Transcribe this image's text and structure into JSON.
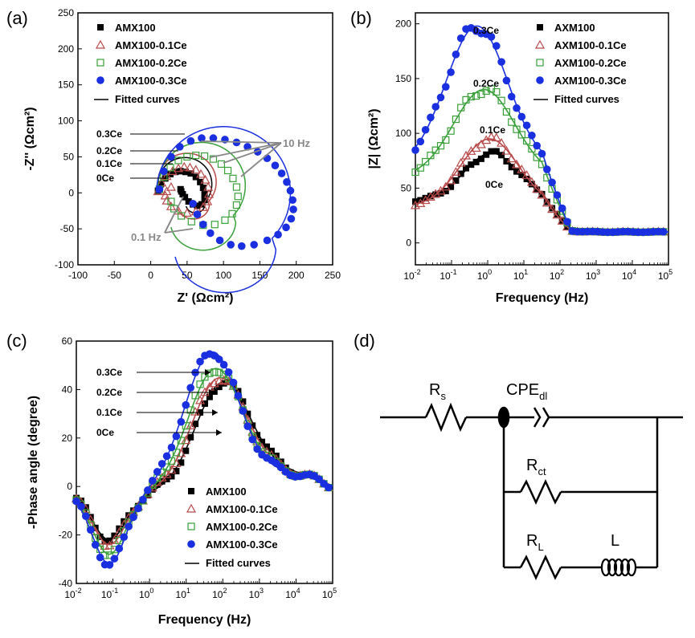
{
  "colors": {
    "AMX100": "#000000",
    "AMX100-0.1Ce": "#b84a4a",
    "AMX100-0.2Ce": "#3aa03a",
    "AMX100-0.3Ce": "#1a2fe0",
    "annotation_gray": "#888888"
  },
  "panels": {
    "a": "(a)",
    "b": "(b)",
    "c": "(c)",
    "d": "(d)"
  },
  "chart_data": [
    {
      "type": "scatter",
      "panel": "(a)",
      "xlabel": "Z' (Ωcm²)",
      "ylabel": "-Z'' (Ωcm²)",
      "xlim": [
        -100,
        250
      ],
      "ylim": [
        -100,
        250
      ],
      "xticks": [
        -100,
        -50,
        0,
        50,
        100,
        150,
        200,
        250
      ],
      "yticks": [
        -100,
        -50,
        0,
        50,
        100,
        150,
        200,
        250
      ],
      "legend": [
        "AMX100",
        "AMX100-0.1Ce",
        "AMX100-0.2Ce",
        "AMX100-0.3Ce",
        "Fitted curves"
      ],
      "legend_position": "top-left",
      "annotations": {
        "left": [
          "0.3Ce",
          "0.2Ce",
          "0.1Ce",
          "0Ce"
        ],
        "hz10": "10 Hz",
        "hz01": "0.1 Hz"
      },
      "series": [
        {
          "name": "AMX100",
          "marker": "filled-square",
          "center": [
            47,
            12
          ],
          "radius": 37,
          "r_loop": 13,
          "x": [
            10,
            14,
            20,
            27,
            34,
            41,
            48,
            55,
            62,
            68,
            72,
            74,
            74,
            70,
            64,
            58,
            52,
            47,
            44,
            42,
            41
          ],
          "y": [
            3,
            12,
            20,
            26,
            29,
            30,
            29,
            27,
            22,
            15,
            7,
            -2,
            -10,
            -16,
            -18,
            -16,
            -12,
            -6,
            -2,
            2,
            5
          ]
        },
        {
          "name": "AMX100-0.1Ce",
          "marker": "open-triangle",
          "center": [
            50,
            15
          ],
          "radius": 40,
          "r_loop": 22,
          "x": [
            10,
            15,
            22,
            30,
            38,
            46,
            54,
            62,
            69,
            75,
            79,
            80,
            78,
            72,
            62,
            50,
            38,
            28,
            22,
            20,
            22,
            28
          ],
          "y": [
            2,
            14,
            23,
            30,
            34,
            36,
            35,
            32,
            26,
            18,
            8,
            -2,
            -12,
            -20,
            -26,
            -28,
            -25,
            -19,
            -11,
            -4,
            2,
            8
          ]
        },
        {
          "name": "AMX100-0.2Ce",
          "marker": "open-square",
          "center": [
            70,
            10
          ],
          "radius": 60,
          "r_loop": 45,
          "x": [
            12,
            18,
            27,
            38,
            50,
            62,
            74,
            86,
            97,
            106,
            113,
            118,
            120,
            118,
            112,
            102,
            88,
            72,
            56,
            42,
            32,
            28
          ],
          "y": [
            5,
            22,
            35,
            45,
            50,
            52,
            51,
            47,
            40,
            31,
            20,
            8,
            -5,
            -17,
            -29,
            -38,
            -44,
            -45,
            -40,
            -32,
            -22,
            -12
          ]
        },
        {
          "name": "AMX100-0.3Ce",
          "marker": "filled-circle",
          "center": [
            100,
            0
          ],
          "radius": 92,
          "r_loop": 70,
          "x": [
            12,
            18,
            28,
            40,
            55,
            70,
            86,
            102,
            118,
            133,
            147,
            160,
            171,
            180,
            187,
            192,
            195,
            196,
            193,
            186,
            175,
            160,
            142,
            125,
            110,
            95,
            82,
            72,
            64,
            58
          ],
          "y": [
            5,
            30,
            50,
            64,
            72,
            76,
            76,
            74,
            70,
            64,
            57,
            48,
            38,
            27,
            15,
            3,
            -10,
            -23,
            -36,
            -48,
            -58,
            -66,
            -72,
            -74,
            -72,
            -66,
            -56,
            -44,
            -30,
            -15
          ]
        }
      ]
    },
    {
      "type": "scatter",
      "panel": "(b)",
      "xlabel": "Frequency (Hz)",
      "ylabel": "|Z| (Ωcm²)",
      "xscale": "log",
      "xlim": [
        0.01,
        100000
      ],
      "ylim": [
        -20,
        210
      ],
      "xticks": [
        "10⁻²",
        "10⁻¹",
        "10⁰",
        "10¹",
        "10²",
        "10³",
        "10⁴",
        "10⁵"
      ],
      "yticks": [
        0,
        50,
        100,
        150,
        200
      ],
      "legend": [
        "AXM100",
        "AXM100-0.1Ce",
        "AXM100-0.2Ce",
        "AXM100-0.3Ce",
        "Fitted curves"
      ],
      "legend_position": "top-right",
      "annotations": [
        "0.3Ce",
        "0.2Ce",
        "0.1Ce",
        "0Ce"
      ],
      "series": [
        {
          "name": "AXM100",
          "marker": "filled-square",
          "low": 38,
          "peak": 82,
          "logpeak": 0.1,
          "width": 0.75
        },
        {
          "name": "AXM100-0.1Ce",
          "marker": "open-triangle",
          "low": 33,
          "peak": 95,
          "logpeak": 0.05,
          "width": 0.8
        },
        {
          "name": "AXM100-0.2Ce",
          "marker": "open-square",
          "low": 60,
          "peak": 140,
          "logpeak": -0.1,
          "width": 0.85
        },
        {
          "name": "AXM100-0.3Ce",
          "marker": "filled-circle",
          "low": 70,
          "peak": 198,
          "logpeak": -0.3,
          "width": 0.85
        }
      ],
      "high_freq_value": 10
    },
    {
      "type": "scatter",
      "panel": "(c)",
      "xlabel": "Frequency (Hz)",
      "ylabel": "-Phase angle (degree)",
      "xscale": "log",
      "xlim": [
        0.01,
        100000
      ],
      "ylim": [
        -40,
        60
      ],
      "xticks": [
        "10⁻²",
        "10⁻¹",
        "10⁰",
        "10¹",
        "10²",
        "10³",
        "10⁴",
        "10⁵"
      ],
      "yticks": [
        -40,
        -20,
        0,
        20,
        40,
        60
      ],
      "legend": [
        "AMX100",
        "AMX100-0.1Ce",
        "AMX100-0.2Ce",
        "AMX100-0.3Ce",
        "Fitted curves"
      ],
      "legend_position": "bottom-center",
      "annotations": [
        "0.3Ce",
        "0.2Ce",
        "0.1Ce",
        "0Ce"
      ],
      "series": [
        {
          "name": "AMX100",
          "marker": "filled-square",
          "min": -19,
          "peak": 45,
          "logpeak": 2.0
        },
        {
          "name": "AMX100-0.1Ce",
          "marker": "open-triangle",
          "min": -21,
          "peak": 47,
          "logpeak": 1.9
        },
        {
          "name": "AMX100-0.2Ce",
          "marker": "open-square",
          "min": -25,
          "peak": 51,
          "logpeak": 1.8
        },
        {
          "name": "AMX100-0.3Ce",
          "marker": "filled-circle",
          "min": -29,
          "peak": 58,
          "logpeak": 1.7
        }
      ]
    }
  ],
  "circuit": {
    "rs": "R",
    "rs_sub": "s",
    "cpe": "CPE",
    "cpe_sub": "dl",
    "rct": "R",
    "rct_sub": "ct",
    "rl": "R",
    "rl_sub": "L",
    "l": "L"
  }
}
